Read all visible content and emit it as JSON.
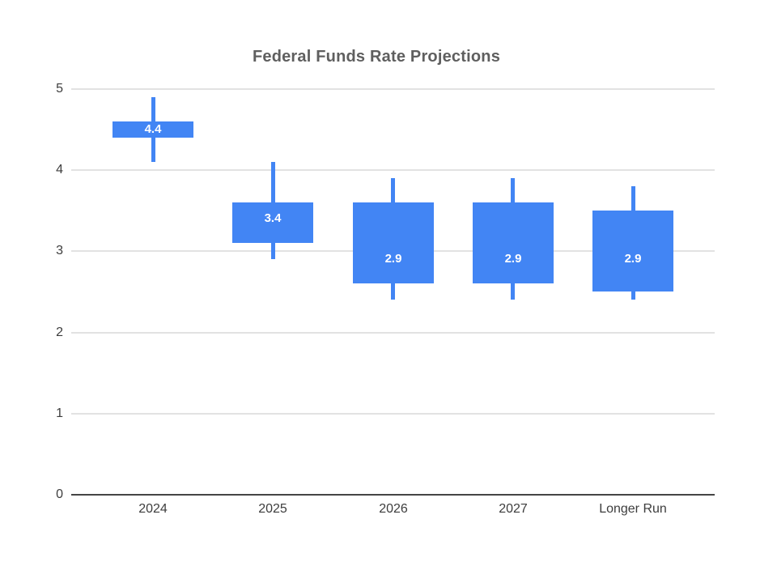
{
  "chart_data": {
    "type": "candlestick",
    "title": "Federal Funds Rate Projections",
    "categories": [
      "2024",
      "2025",
      "2026",
      "2027",
      "Longer Run"
    ],
    "series": [
      {
        "category": "2024",
        "low": 4.1,
        "box_low": 4.4,
        "box_high": 4.6,
        "high": 4.9,
        "median": 4.4,
        "label": "4.4"
      },
      {
        "category": "2025",
        "low": 2.9,
        "box_low": 3.1,
        "box_high": 3.6,
        "high": 4.1,
        "median": 3.4,
        "label": "3.4"
      },
      {
        "category": "2026",
        "low": 2.4,
        "box_low": 2.6,
        "box_high": 3.6,
        "high": 3.9,
        "median": 2.9,
        "label": "2.9"
      },
      {
        "category": "2027",
        "low": 2.4,
        "box_low": 2.6,
        "box_high": 3.6,
        "high": 3.9,
        "median": 2.9,
        "label": "2.9"
      },
      {
        "category": "Longer Run",
        "low": 2.4,
        "box_low": 2.5,
        "box_high": 3.5,
        "high": 3.8,
        "median": 2.9,
        "label": "2.9"
      }
    ],
    "y_axis": {
      "min": 0,
      "max": 5,
      "ticks": [
        5,
        4,
        3,
        2,
        1,
        0
      ]
    },
    "x_axis": {
      "label": ""
    },
    "grid": true,
    "legend": "none",
    "colors": {
      "box": "#4285f4",
      "whisker": "#4285f4",
      "value_label_text": "#ffffff",
      "gridline": "#e2e2e2",
      "axis_baseline": "#454545",
      "axis_text": "#3d3d3d",
      "title_text": "#5f5f5f",
      "background": "#ffffff"
    }
  }
}
